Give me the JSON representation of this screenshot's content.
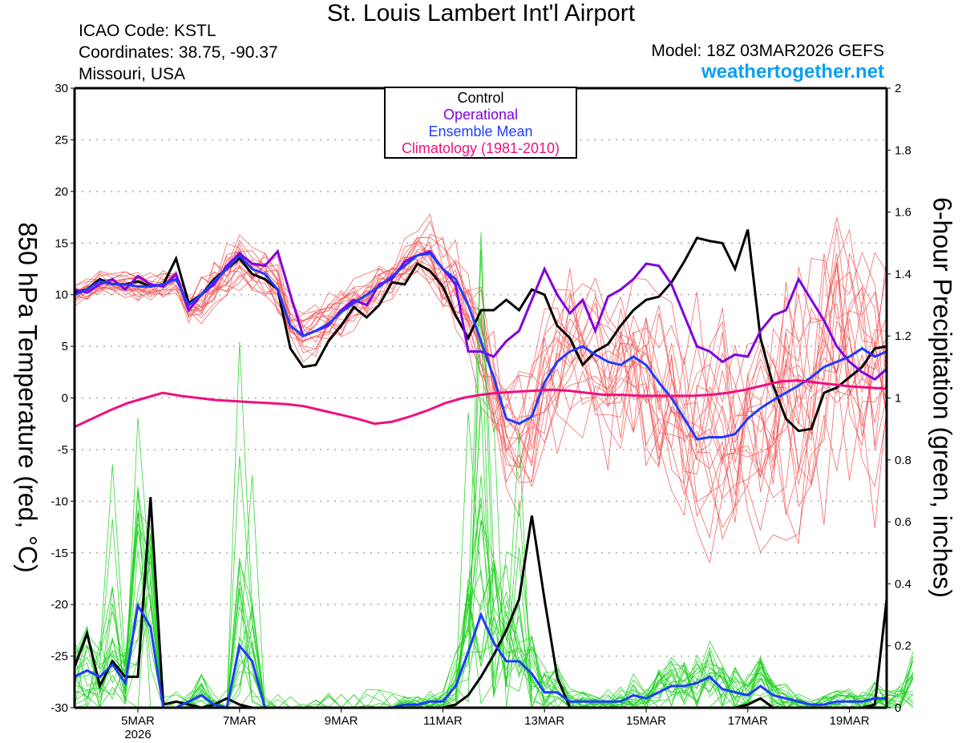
{
  "header": {
    "title": "St. Louis Lambert Int'l Airport",
    "icao": "ICAO Code: KSTL",
    "coordinates": "Coordinates: 38.75, -90.37",
    "region": "Missouri, USA",
    "model": "Model: 18Z 03MAR2026 GEFS",
    "site": "weathertogether.net"
  },
  "colors": {
    "control": "#000000",
    "operational": "#7f00e0",
    "ensemble_mean": "#1e3cff",
    "climatology": "#ee1080",
    "temp_members": "#f05050",
    "precip_members": "#20d020",
    "site": "#0a9ff5",
    "grid": "#aaaaaa"
  },
  "chart_data": {
    "type": "line",
    "title": "St. Louis Lambert Int'l Airport",
    "xlabel": "",
    "ylabel_left": "850 hPa Temperature (red, °C)",
    "ylabel_right": "6-hour Precipitation (green, inches)",
    "ylim_left": [
      -30,
      30
    ],
    "ylim_right": [
      0,
      2
    ],
    "yticks_left": [
      "30",
      "25",
      "20",
      "15",
      "10",
      "5",
      "0",
      "-5",
      "-10",
      "-15",
      "-20",
      "-25",
      "-30"
    ],
    "yticks_right": [
      "2",
      "1.8",
      "1.6",
      "1.4",
      "1.2",
      "1",
      "0.8",
      "0.6",
      "0.4",
      "0.2",
      "0"
    ],
    "x_start": "2026-03-03T18Z",
    "x_step_hours": 6,
    "xticks": [
      {
        "label": "5MAR",
        "sublabel": "2026",
        "day": 5
      },
      {
        "label": "7MAR",
        "sublabel": "",
        "day": 7
      },
      {
        "label": "9MAR",
        "sublabel": "",
        "day": 9
      },
      {
        "label": "11MAR",
        "sublabel": "",
        "day": 11
      },
      {
        "label": "13MAR",
        "sublabel": "",
        "day": 13
      },
      {
        "label": "15MAR",
        "sublabel": "",
        "day": 15
      },
      {
        "label": "17MAR",
        "sublabel": "",
        "day": 17
      },
      {
        "label": "19MAR",
        "sublabel": "",
        "day": 19
      }
    ],
    "grid": true,
    "legend": {
      "placement": "top-center",
      "entries": [
        {
          "label": "Control",
          "color": "#000000"
        },
        {
          "label": "Operational",
          "color": "#7f00e0"
        },
        {
          "label": "Ensemble Mean",
          "color": "#1e3cff"
        },
        {
          "label": "Climatology (1981-2010)",
          "color": "#ee1080"
        }
      ]
    },
    "series": [
      {
        "name": "Control 850 hPa Temperature",
        "axis": "left",
        "values": [
          10.2,
          10.5,
          11.5,
          11.0,
          11.0,
          11.3,
          10.8,
          11.0,
          13.5,
          9.2,
          10.0,
          11.5,
          12.5,
          13.5,
          12.0,
          11.5,
          10.5,
          4.8,
          3.0,
          3.2,
          5.5,
          7.0,
          8.8,
          7.8,
          9.0,
          11.2,
          11.0,
          13.0,
          12.3,
          10.8,
          8.0,
          5.8,
          8.5,
          8.5,
          9.5,
          8.5,
          10.5,
          10.0,
          7.0,
          5.8,
          3.2,
          4.5,
          5.2,
          7.0,
          8.5,
          9.5,
          9.8,
          11.2,
          13.2,
          15.5,
          15.2,
          15.0,
          12.5,
          16.3,
          5.8,
          1.2,
          -2.0,
          -3.2,
          -3.0,
          0.5,
          1.0,
          2.0,
          3.0,
          4.8,
          5.0
        ]
      },
      {
        "name": "Operational 850 hPa Temperature",
        "axis": "left",
        "values": [
          10.5,
          10.2,
          11.0,
          11.5,
          10.5,
          11.8,
          11.0,
          10.8,
          12.0,
          8.5,
          10.0,
          11.0,
          12.8,
          14.0,
          13.0,
          12.8,
          14.2,
          10.0,
          6.0,
          6.5,
          7.0,
          8.5,
          9.5,
          9.0,
          11.0,
          11.5,
          13.2,
          13.8,
          14.2,
          12.5,
          11.0,
          4.5,
          4.5,
          4.0,
          5.5,
          6.5,
          9.5,
          12.5,
          10.0,
          8.2,
          9.5,
          6.5,
          9.8,
          10.5,
          11.5,
          13.0,
          12.8,
          11.0,
          8.0,
          5.0,
          4.5,
          3.5,
          4.2,
          4.0,
          6.5,
          8.0,
          8.5,
          11.5,
          9.5,
          7.5,
          5.0,
          3.5,
          2.5,
          1.8,
          2.8
        ]
      },
      {
        "name": "Ensemble Mean 850 hPa Temperature",
        "axis": "left",
        "values": [
          10.0,
          10.5,
          11.3,
          11.0,
          11.0,
          10.8,
          10.8,
          11.0,
          11.5,
          9.0,
          10.0,
          11.3,
          12.5,
          13.8,
          12.5,
          12.0,
          10.5,
          7.0,
          6.0,
          6.5,
          7.2,
          8.3,
          9.2,
          10.0,
          10.8,
          11.8,
          12.8,
          13.8,
          14.0,
          12.5,
          11.5,
          9.0,
          5.5,
          2.0,
          -2.0,
          -2.5,
          -1.8,
          1.5,
          3.5,
          4.5,
          5.0,
          4.2,
          3.5,
          3.2,
          4.0,
          3.2,
          1.5,
          0.0,
          -2.0,
          -4.0,
          -3.8,
          -3.8,
          -3.5,
          -2.0,
          -1.0,
          -0.2,
          0.5,
          1.2,
          2.0,
          3.0,
          3.5,
          4.0,
          4.8,
          4.0,
          4.5
        ]
      },
      {
        "name": "Climatology (1981-2010)",
        "axis": "left",
        "values": [
          -2.8,
          -2.0,
          -1.2,
          -0.5,
          0.0,
          0.5,
          0.2,
          0.0,
          -0.2,
          -0.3,
          -0.4,
          -0.5,
          -0.6,
          -0.8,
          -1.2,
          -1.6,
          -2.0,
          -2.5,
          -2.3,
          -1.8,
          -1.2,
          -0.5,
          0.0,
          0.3,
          0.5,
          0.6,
          0.7,
          0.8,
          0.7,
          0.5,
          0.3,
          0.3,
          0.2,
          0.2,
          0.2,
          0.2,
          0.3,
          0.5,
          0.8,
          1.2,
          1.6,
          1.7,
          1.5,
          1.3,
          1.1,
          1.0,
          0.9
        ]
      },
      {
        "name": "Control 6-hour Precipitation",
        "axis": "right",
        "values": [
          0.13,
          0.24,
          0.07,
          0.15,
          0.1,
          0.1,
          0.68,
          0.01,
          0.02,
          0.01,
          0.0,
          0.01,
          0.03,
          0.01,
          0.0,
          0.0,
          0.0,
          0.0,
          0.0,
          0.0,
          0.0,
          0.0,
          0.0,
          0.0,
          0.0,
          0.0,
          0.0,
          0.0,
          0.0,
          0.0,
          0.01,
          0.04,
          0.1,
          0.17,
          0.25,
          0.35,
          0.62,
          0.35,
          0.1,
          0.0,
          0.0,
          0.0,
          0.0,
          0.0,
          0.0,
          0.0,
          0.0,
          0.0,
          0.0,
          0.0,
          0.0,
          0.0,
          0.0,
          0.01,
          0.03,
          0.0,
          0.0,
          0.0,
          0.0,
          0.0,
          0.0,
          0.0,
          0.0,
          0.01,
          0.35,
          0.0
        ]
      },
      {
        "name": "Ensemble Mean 6-hour Precipitation",
        "axis": "right",
        "values": [
          0.1,
          0.12,
          0.1,
          0.14,
          0.08,
          0.33,
          0.26,
          0.0,
          0.0,
          0.02,
          0.04,
          0.01,
          0.0,
          0.2,
          0.15,
          0.0,
          0.0,
          0.0,
          0.0,
          0.0,
          0.0,
          0.0,
          0.0,
          0.0,
          0.0,
          0.0,
          0.01,
          0.01,
          0.02,
          0.02,
          0.07,
          0.18,
          0.3,
          0.21,
          0.15,
          0.15,
          0.11,
          0.05,
          0.05,
          0.02,
          0.02,
          0.02,
          0.02,
          0.02,
          0.04,
          0.03,
          0.05,
          0.07,
          0.07,
          0.08,
          0.1,
          0.06,
          0.05,
          0.04,
          0.07,
          0.04,
          0.03,
          0.02,
          0.01,
          0.01,
          0.02,
          0.02,
          0.02,
          0.03,
          0.03,
          0.03,
          0.08
        ]
      }
    ],
    "ensemble_members_temperature_count": 20,
    "ensemble_members_precip_count": 20
  }
}
